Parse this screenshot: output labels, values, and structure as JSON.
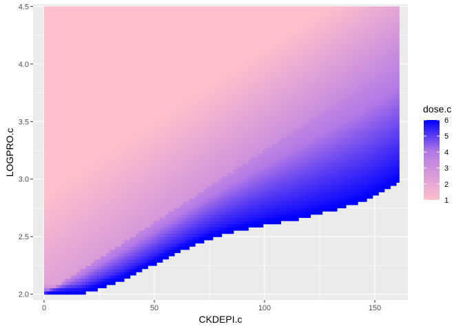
{
  "chart_data": {
    "type": "heatmap",
    "xlabel": "CKDEPI.c",
    "ylabel": "LOGPRO.c",
    "xlim": [
      -5,
      165
    ],
    "ylim": [
      1.95,
      4.52
    ],
    "x_ticks": [
      0,
      50,
      100,
      150
    ],
    "x_tick_labels": [
      "0",
      "50",
      "100",
      "150"
    ],
    "y_ticks": [
      2.0,
      2.5,
      3.0,
      3.5,
      4.0,
      4.5
    ],
    "y_tick_labels": [
      "2.0",
      "2.5",
      "3.0",
      "3.5",
      "4.0",
      "4.5"
    ],
    "grid": true,
    "x_range": [
      0,
      161
    ],
    "y_range": [
      2.0,
      4.5
    ],
    "lower_boundary": [
      {
        "x": 0,
        "y": 2.0
      },
      {
        "x": 17,
        "y": 2.0
      },
      {
        "x": 25,
        "y": 2.05
      },
      {
        "x": 35,
        "y": 2.12
      },
      {
        "x": 45,
        "y": 2.21
      },
      {
        "x": 55,
        "y": 2.31
      },
      {
        "x": 65,
        "y": 2.4
      },
      {
        "x": 75,
        "y": 2.48
      },
      {
        "x": 85,
        "y": 2.54
      },
      {
        "x": 95,
        "y": 2.58
      },
      {
        "x": 105,
        "y": 2.62
      },
      {
        "x": 115,
        "y": 2.65
      },
      {
        "x": 125,
        "y": 2.7
      },
      {
        "x": 135,
        "y": 2.75
      },
      {
        "x": 145,
        "y": 2.81
      },
      {
        "x": 155,
        "y": 2.91
      },
      {
        "x": 161,
        "y": 2.98
      }
    ],
    "fill_legend": {
      "title": "dose.c",
      "min": 1,
      "max": 6,
      "breaks": [
        1,
        2,
        3,
        4,
        5,
        6
      ],
      "break_labels": [
        "1",
        "2",
        "3",
        "4",
        "5",
        "6"
      ],
      "low_color": "#ffc0cb",
      "mid_color": "#b57ae6",
      "high_color": "#0000ff",
      "position": "right"
    },
    "panel_background": "#ebebeb",
    "grid_color": "#ffffff"
  }
}
